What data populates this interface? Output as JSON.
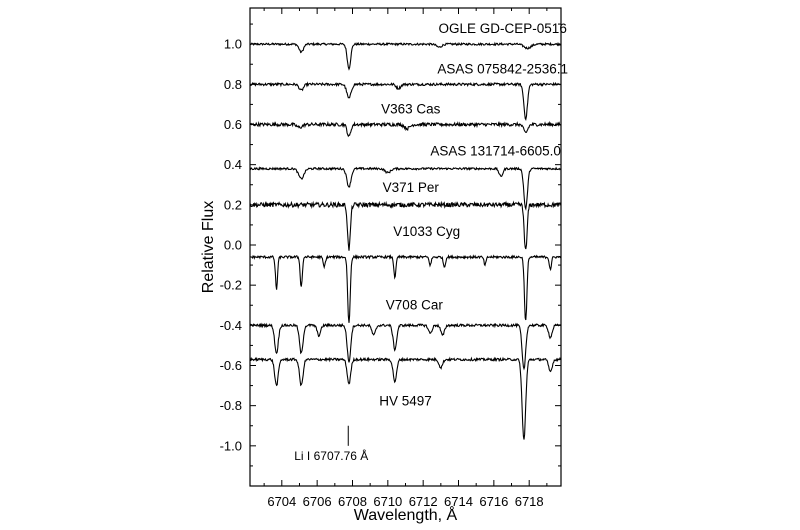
{
  "chart_data": {
    "type": "line",
    "title": "",
    "xlabel": "Wavelength, Å",
    "ylabel": "Relative  Flux",
    "xlim": [
      6702.2,
      6719.8
    ],
    "ylim": [
      -1.2,
      1.18
    ],
    "x_ticks": [
      6704,
      6706,
      6708,
      6710,
      6712,
      6714,
      6716,
      6718
    ],
    "x_tick_labels": [
      "6704",
      "6706",
      "6708",
      "6710",
      "6712",
      "6714",
      "6716",
      "6718"
    ],
    "y_ticks": [
      1.0,
      0.8,
      0.6,
      0.4,
      0.2,
      0.0,
      -0.2,
      -0.4,
      -0.6,
      -0.8,
      -1.0
    ],
    "y_tick_labels": [
      "1.0",
      "0.8",
      "0.6",
      "0.4",
      "0.2",
      "0.0",
      "-0.2",
      "-0.4",
      "-0.6",
      "-0.8",
      "-1.0"
    ],
    "grid": false,
    "series": [
      {
        "name": "OGLE GD-CEP-0516",
        "baseline": 1.0,
        "noise": 0.005,
        "lines": [
          [
            6705.1,
            0.04,
            0.12
          ],
          [
            6707.8,
            0.12,
            0.1
          ],
          [
            6712.9,
            0.015,
            0.15
          ],
          [
            6717.9,
            0.02,
            0.2
          ]
        ],
        "label_x": 6716.5,
        "label_y": 1.055
      },
      {
        "name": "ASAS 075842-2536.1",
        "baseline": 0.8,
        "noise": 0.006,
        "lines": [
          [
            6705.1,
            0.03,
            0.12
          ],
          [
            6707.8,
            0.07,
            0.12
          ],
          [
            6710.6,
            0.02,
            0.12
          ],
          [
            6717.8,
            0.17,
            0.1
          ]
        ],
        "label_x": 6716.5,
        "label_y": 0.855
      },
      {
        "name": "V363 Cas",
        "baseline": 0.6,
        "noise": 0.008,
        "lines": [
          [
            6705.0,
            0.015,
            0.15
          ],
          [
            6707.8,
            0.06,
            0.1
          ],
          [
            6711.1,
            0.02,
            0.15
          ],
          [
            6717.8,
            0.04,
            0.12
          ]
        ],
        "label_x": 6711.3,
        "label_y": 0.655
      },
      {
        "name": "ASAS 131714-6605.0",
        "baseline": 0.38,
        "noise": 0.005,
        "lines": [
          [
            6705.1,
            0.05,
            0.15
          ],
          [
            6707.8,
            0.09,
            0.12
          ],
          [
            6710.0,
            0.02,
            0.15
          ],
          [
            6716.4,
            0.04,
            0.1
          ],
          [
            6717.8,
            0.2,
            0.1
          ]
        ],
        "label_x": 6716.1,
        "label_y": 0.445
      },
      {
        "name": "V371 Per",
        "baseline": 0.2,
        "noise": 0.011,
        "lines": [
          [
            6707.8,
            0.22,
            0.08
          ],
          [
            6717.8,
            0.23,
            0.08
          ]
        ],
        "label_x": 6711.3,
        "label_y": 0.265
      },
      {
        "name": "V1033 Cyg",
        "baseline": -0.06,
        "noise": 0.006,
        "lines": [
          [
            6703.7,
            0.16,
            0.06
          ],
          [
            6705.1,
            0.15,
            0.06
          ],
          [
            6706.4,
            0.05,
            0.06
          ],
          [
            6707.8,
            0.33,
            0.07
          ],
          [
            6710.4,
            0.1,
            0.06
          ],
          [
            6712.4,
            0.04,
            0.06
          ],
          [
            6713.2,
            0.05,
            0.06
          ],
          [
            6715.5,
            0.04,
            0.06
          ],
          [
            6717.8,
            0.32,
            0.07
          ],
          [
            6719.2,
            0.06,
            0.06
          ]
        ],
        "label_x": 6712.2,
        "label_y": 0.045
      },
      {
        "name": "V708 Car",
        "baseline": -0.4,
        "noise": 0.006,
        "lines": [
          [
            6703.7,
            0.14,
            0.1
          ],
          [
            6705.1,
            0.14,
            0.1
          ],
          [
            6706.1,
            0.05,
            0.1
          ],
          [
            6707.8,
            0.18,
            0.1
          ],
          [
            6709.2,
            0.05,
            0.1
          ],
          [
            6710.4,
            0.12,
            0.1
          ],
          [
            6712.4,
            0.04,
            0.1
          ],
          [
            6713.1,
            0.05,
            0.1
          ],
          [
            6717.7,
            0.22,
            0.1
          ],
          [
            6719.2,
            0.06,
            0.1
          ]
        ],
        "label_x": 6711.5,
        "label_y": -0.32
      },
      {
        "name": "HV 5497",
        "baseline": -0.57,
        "noise": 0.006,
        "lines": [
          [
            6703.7,
            0.13,
            0.1
          ],
          [
            6705.1,
            0.13,
            0.1
          ],
          [
            6707.8,
            0.12,
            0.1
          ],
          [
            6710.4,
            0.11,
            0.1
          ],
          [
            6713.0,
            0.04,
            0.1
          ],
          [
            6717.7,
            0.4,
            0.1
          ],
          [
            6719.2,
            0.06,
            0.1
          ]
        ],
        "label_x": 6711.0,
        "label_y": -0.8
      }
    ],
    "annotations": [
      {
        "text": "Li I  6707.76 Å",
        "x": 6706.8,
        "y": -1.07
      }
    ],
    "marker": {
      "x": 6707.76,
      "y_top": -0.9,
      "y_bottom": -1.0
    }
  }
}
